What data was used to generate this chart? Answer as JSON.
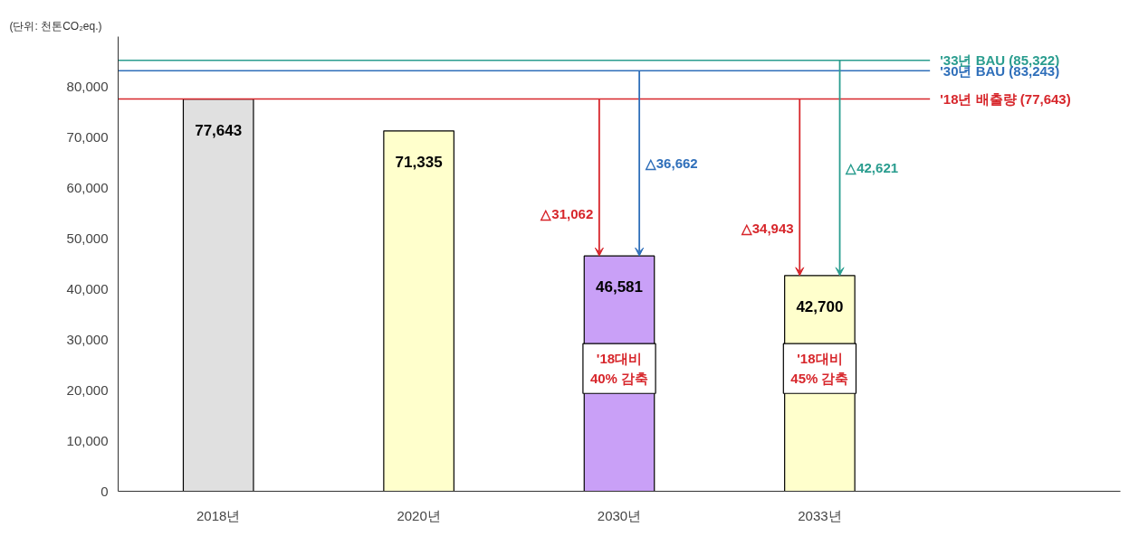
{
  "chart_data": {
    "type": "bar",
    "ylabel": "(단위: 천톤CO₂eq.)",
    "categories": [
      "2018년",
      "2020년",
      "2030년",
      "2033년"
    ],
    "values": [
      77643,
      71335,
      46581,
      42700
    ],
    "colors": [
      "#e0e0e0",
      "#ffffcc",
      "#c9a0f7",
      "#ffffcc"
    ],
    "value_labels": [
      "77,643",
      "71,335",
      "46,581",
      "42,700"
    ],
    "ylim": [
      0,
      90000
    ],
    "yticks": [
      {
        "value": 0,
        "label": "0"
      },
      {
        "value": 10000,
        "label": "10,000"
      },
      {
        "value": 20000,
        "label": "20,000"
      },
      {
        "value": 30000,
        "label": "30,000"
      },
      {
        "value": 40000,
        "label": "40,000"
      },
      {
        "value": 50000,
        "label": "50,000"
      },
      {
        "value": 60000,
        "label": "60,000"
      },
      {
        "value": 70000,
        "label": "70,000"
      },
      {
        "value": 80000,
        "label": "80,000"
      }
    ],
    "ref_lines": [
      {
        "axis": "y",
        "value": 85322,
        "label": "'33년 BAU (85,322)",
        "color": "#2a9d8f"
      },
      {
        "axis": "y",
        "value": 83243,
        "label": "'30년 BAU (83,243)",
        "color": "#2f6fba"
      },
      {
        "axis": "y",
        "value": 77643,
        "label": "'18년 배출량 (77,643)",
        "color": "#d7262b"
      }
    ],
    "annotations": [
      "△31,062",
      "△36,662",
      "△34,943",
      "△42,621",
      "'18대비\n40% 감축",
      "'18대비\n45% 감축"
    ],
    "grid": false
  }
}
